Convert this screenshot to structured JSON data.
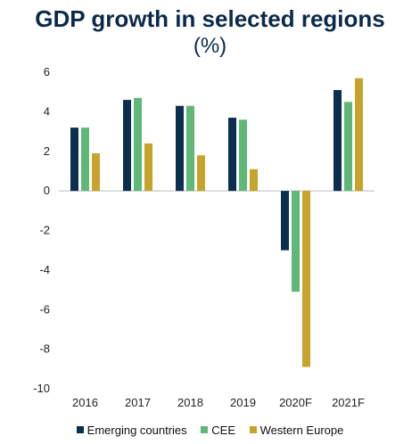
{
  "chart_data": {
    "type": "bar",
    "title": "GDP growth in selected regions",
    "subtitle": "(%)",
    "categories": [
      "2016",
      "2017",
      "2018",
      "2019",
      "2020F",
      "2021F"
    ],
    "series": [
      {
        "name": "Emerging countries",
        "color": "#0d2f4f",
        "values": [
          3.2,
          4.6,
          4.3,
          3.7,
          -3.0,
          5.1
        ]
      },
      {
        "name": "CEE",
        "color": "#5fb878",
        "values": [
          3.2,
          4.7,
          4.3,
          3.6,
          -5.1,
          4.5
        ]
      },
      {
        "name": "Western Europe",
        "color": "#c6a42c",
        "values": [
          1.9,
          2.4,
          1.8,
          1.1,
          -8.9,
          5.7
        ]
      }
    ],
    "ylim": [
      -10,
      6
    ],
    "yticks": [
      6,
      4,
      2,
      0,
      -2,
      -4,
      -6,
      -8,
      -10
    ],
    "legend_position": "bottom",
    "grid": false
  }
}
